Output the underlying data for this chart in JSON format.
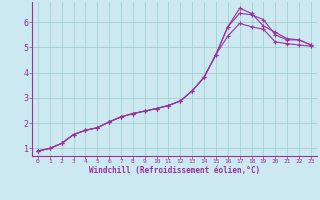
{
  "xlabel": "Windchill (Refroidissement éolien,°C)",
  "bg_color": "#cce8f0",
  "line_color": "#993399",
  "grid_color": "#99cccc",
  "xlim": [
    -0.5,
    23.5
  ],
  "ylim": [
    0.7,
    6.8
  ],
  "xticks": [
    0,
    1,
    2,
    3,
    4,
    5,
    6,
    7,
    8,
    9,
    10,
    11,
    12,
    13,
    14,
    15,
    16,
    17,
    18,
    19,
    20,
    21,
    22,
    23
  ],
  "yticks": [
    1,
    2,
    3,
    4,
    5,
    6
  ],
  "line1_x": [
    0,
    1,
    2,
    3,
    4,
    5,
    6,
    7,
    8,
    9,
    10,
    11,
    12,
    13,
    14,
    15,
    16,
    17,
    18,
    19,
    20,
    21,
    22,
    23
  ],
  "line1_y": [
    0.9,
    1.0,
    1.2,
    1.55,
    1.72,
    1.82,
    2.05,
    2.25,
    2.38,
    2.48,
    2.58,
    2.7,
    2.88,
    3.28,
    3.82,
    4.72,
    5.82,
    6.55,
    6.35,
    5.85,
    5.6,
    5.35,
    5.3,
    5.1
  ],
  "line2_x": [
    0,
    1,
    2,
    3,
    4,
    5,
    6,
    7,
    8,
    9,
    10,
    11,
    12,
    13,
    14,
    15,
    16,
    17,
    18,
    19,
    20,
    21,
    22,
    23
  ],
  "line2_y": [
    0.9,
    1.0,
    1.2,
    1.55,
    1.72,
    1.82,
    2.05,
    2.25,
    2.38,
    2.48,
    2.58,
    2.7,
    2.88,
    3.28,
    3.82,
    4.72,
    5.82,
    6.35,
    6.3,
    6.1,
    5.5,
    5.3,
    5.3,
    5.1
  ],
  "line3_x": [
    0,
    1,
    2,
    3,
    4,
    5,
    6,
    7,
    8,
    9,
    10,
    11,
    12,
    13,
    14,
    15,
    16,
    17,
    18,
    19,
    20,
    21,
    22,
    23
  ],
  "line3_y": [
    0.9,
    1.0,
    1.2,
    1.55,
    1.72,
    1.82,
    2.05,
    2.25,
    2.38,
    2.48,
    2.58,
    2.7,
    2.88,
    3.28,
    3.82,
    4.72,
    5.45,
    5.95,
    5.82,
    5.72,
    5.22,
    5.15,
    5.1,
    5.05
  ]
}
